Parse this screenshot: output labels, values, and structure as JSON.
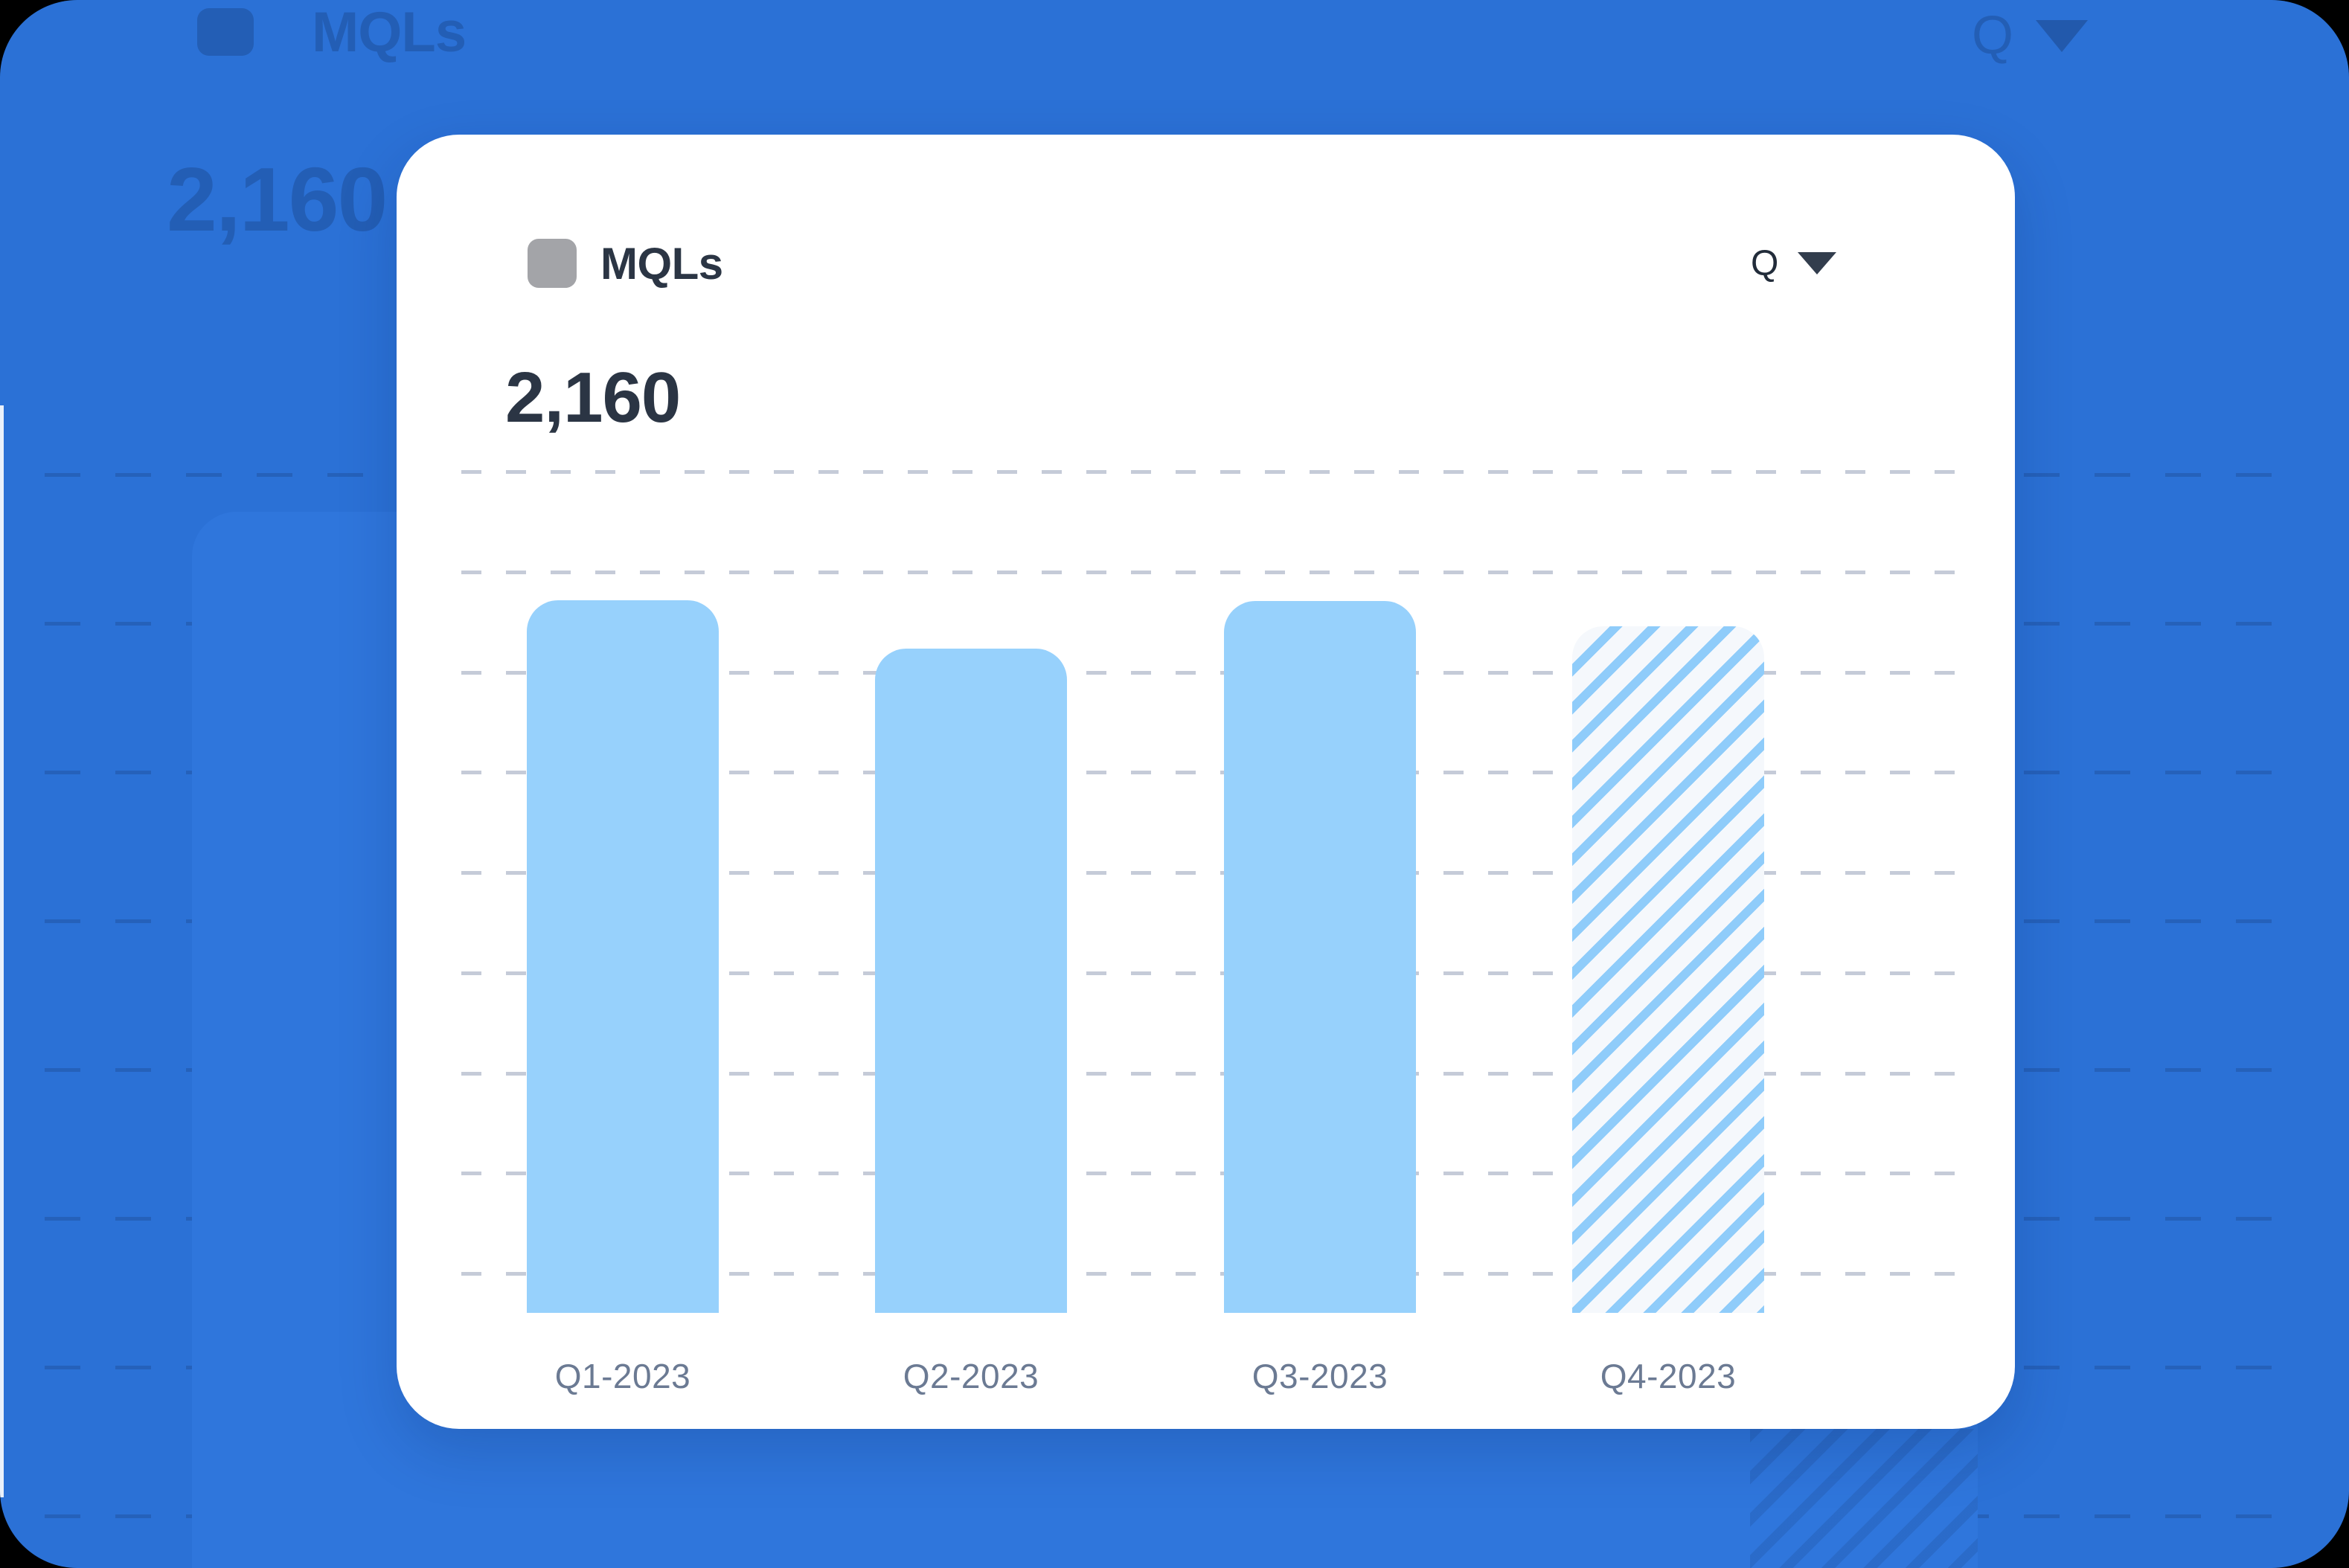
{
  "colors": {
    "backdrop_blue": "#2B71D6",
    "ghost_panel_blue": "#2F76DC",
    "card_background": "#FFFFFF",
    "bar_blue": "#97D1FC",
    "hatch_bar_background": "#F5F8FC",
    "text_dark": "#2B3544",
    "x_label_gray": "#6B7A93",
    "gridline_gray": "#C5CBD8",
    "metric_icon_gray": "#A3A4A8"
  },
  "card": {
    "header": {
      "icon": "metric-placeholder-icon",
      "title": "MQLs",
      "period_selector": {
        "label": "Q",
        "icon": "caret-down-icon"
      }
    },
    "value": "2,160"
  },
  "chart_data": {
    "type": "bar",
    "title": "MQLs",
    "headline_value": "2,160",
    "categories": [
      "Q1-2023",
      "Q2-2023",
      "Q3-2023",
      "Q4-2023"
    ],
    "values": [
      711,
      663,
      710,
      685
    ],
    "bar_styles": [
      "solid",
      "solid",
      "solid",
      "hatched"
    ],
    "xlabel": "",
    "ylabel": "",
    "ylim": [
      0,
      840
    ],
    "grid": "dashed-horizontal",
    "gridline_count": 9,
    "grid_step_value": 100,
    "legend": "none",
    "y_tick_labels": "none"
  }
}
